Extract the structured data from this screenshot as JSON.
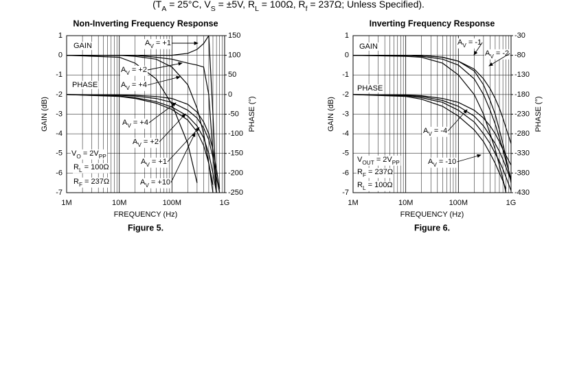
{
  "header": [
    "(T",
    "A",
    " = 25°C, V",
    "S",
    " = ±5V, R",
    "L",
    " = 100Ω, R",
    "f",
    " = 237Ω; Unless Specified)."
  ],
  "chart_data": [
    {
      "type": "line",
      "title": "Non-Inverting Frequency Response",
      "xlabel": "FREQUENCY (Hz)",
      "ylabel": "GAIN (dB)",
      "y2label": "PHASE (°)",
      "caption": "Figure 5.",
      "log_x": true,
      "grid": true,
      "x": [
        1000000,
        10000000,
        20000000,
        50000000,
        100000000,
        200000000,
        300000000,
        400000000,
        500000000,
        600000000,
        700000000,
        800000000,
        1000000000
      ],
      "xlim": [
        1000000,
        1000000000
      ],
      "xticks": [
        {
          "value": 1000000,
          "label": "1M"
        },
        {
          "value": 10000000,
          "label": "10M"
        },
        {
          "value": 100000000,
          "label": "100M"
        },
        {
          "value": 1000000000,
          "label": "1G"
        }
      ],
      "xminorticks": [
        2000000,
        3000000,
        4000000,
        5000000,
        6000000,
        7000000,
        8000000,
        9000000,
        20000000,
        30000000,
        40000000,
        50000000,
        60000000,
        70000000,
        80000000,
        90000000,
        200000000,
        300000000,
        400000000,
        500000000,
        600000000,
        700000000,
        800000000,
        900000000
      ],
      "ylim": [
        -7,
        1
      ],
      "yticks": [
        1,
        0,
        -1,
        -2,
        -3,
        -4,
        -5,
        -6,
        -7
      ],
      "y2lim": [
        -250,
        150
      ],
      "y2ticks": [
        150,
        100,
        50,
        0,
        -50,
        -100,
        -150,
        -200,
        -250
      ],
      "series": [
        {
          "color": "#000000",
          "values": [
            0,
            0,
            0,
            0,
            0,
            0.1,
            0.3,
            0.6,
            1,
            -3,
            -7,
            null,
            null
          ]
        },
        {
          "color": "#000000",
          "values": [
            0,
            0,
            0,
            -0.1,
            -0.2,
            -0.4,
            -0.5,
            -0.6,
            -2,
            -5,
            -7,
            null,
            null
          ]
        },
        {
          "color": "#000000",
          "values": [
            0,
            0,
            -0.05,
            -0.2,
            -0.6,
            -1.5,
            -2.7,
            -4,
            -5.5,
            -7,
            null,
            null,
            null
          ]
        },
        {
          "color": "#000000",
          "values": [
            0,
            -0.1,
            -0.4,
            -1.2,
            -2.5,
            -4.5,
            -6.5,
            null,
            null,
            null,
            null,
            null,
            null
          ]
        },
        {
          "color": "#000000",
          "axis": "y2",
          "values": [
            0,
            -1,
            -2,
            -5,
            -10,
            -25,
            -45,
            -70,
            -100,
            -140,
            -190,
            -240,
            null
          ]
        },
        {
          "color": "#000000",
          "axis": "y2",
          "values": [
            0,
            -2,
            -4,
            -10,
            -20,
            -40,
            -60,
            -85,
            -115,
            -160,
            -210,
            -250,
            null
          ]
        },
        {
          "color": "#000000",
          "axis": "y2",
          "values": [
            0,
            -4,
            -8,
            -18,
            -32,
            -55,
            -80,
            -110,
            -150,
            -200,
            -250,
            null,
            null
          ]
        },
        {
          "color": "#000000",
          "axis": "y2",
          "values": [
            0,
            -5,
            -10,
            -22,
            -38,
            -65,
            -95,
            -130,
            -175,
            -230,
            null,
            null,
            null
          ]
        }
      ],
      "labels": [
        [
          "GAIN"
        ],
        [
          "PHASE"
        ],
        [
          "V",
          "O",
          " = 2V",
          "PP"
        ],
        [
          "R",
          "L",
          " = 100Ω"
        ],
        [
          "R",
          "F",
          " = 237Ω"
        ]
      ],
      "annotations": [
        [
          "A",
          "V",
          " = +1"
        ],
        [
          "A",
          "V",
          " = +2"
        ],
        [
          "A",
          "V",
          " = +4"
        ],
        [
          "A",
          "V",
          " = +4"
        ],
        [
          "A",
          "V",
          " = +2"
        ],
        [
          "A",
          "V",
          " = +1"
        ],
        [
          "A",
          "V",
          " = +10"
        ]
      ]
    },
    {
      "type": "line",
      "title": "Inverting Frequency Response",
      "xlabel": "FREQUENCY (Hz)",
      "ylabel": "GAIN (dB)",
      "y2label": "PHASE (°)",
      "caption": "Figure 6.",
      "log_x": true,
      "grid": true,
      "x": [
        1000000,
        10000000,
        20000000,
        50000000,
        100000000,
        200000000,
        300000000,
        400000000,
        500000000,
        600000000,
        700000000,
        800000000,
        1000000000
      ],
      "xlim": [
        1000000,
        1000000000
      ],
      "xticks": [
        {
          "value": 1000000,
          "label": "1M"
        },
        {
          "value": 10000000,
          "label": "10M"
        },
        {
          "value": 100000000,
          "label": "100M"
        },
        {
          "value": 1000000000,
          "label": "1G"
        }
      ],
      "xminorticks": [
        2000000,
        3000000,
        4000000,
        5000000,
        6000000,
        7000000,
        8000000,
        9000000,
        20000000,
        30000000,
        40000000,
        50000000,
        60000000,
        70000000,
        80000000,
        90000000,
        200000000,
        300000000,
        400000000,
        500000000,
        600000000,
        700000000,
        800000000,
        900000000
      ],
      "ylim": [
        -7,
        1
      ],
      "yticks": [
        1,
        0,
        -1,
        -2,
        -3,
        -4,
        -5,
        -6,
        -7
      ],
      "y2lim": [
        -430,
        -30
      ],
      "y2ticks": [
        -30,
        -80,
        -130,
        -180,
        -230,
        -280,
        -330,
        -380,
        -430
      ],
      "series": [
        {
          "color": "#000000",
          "values": [
            0,
            0,
            0,
            -0.1,
            -0.3,
            -0.8,
            -1.5,
            -2.3,
            -3,
            -3.8,
            -4.5,
            -5.2,
            -6.5
          ]
        },
        {
          "color": "#000000",
          "values": [
            0,
            0,
            0,
            -0.1,
            -0.3,
            -0.7,
            -1.2,
            -1.7,
            -2.2,
            -2.7,
            -3.2,
            -3.7,
            -4.5
          ]
        },
        {
          "color": "#000000",
          "values": [
            0,
            0,
            -0.05,
            -0.2,
            -0.5,
            -1.2,
            -2,
            -2.8,
            -3.5,
            -4.2,
            -4.8,
            -5.4,
            -6.3
          ]
        },
        {
          "color": "#000000",
          "values": [
            0,
            -0.05,
            -0.1,
            -0.4,
            -1,
            -2,
            -3,
            -4,
            -4.8,
            -5.6,
            -6.3,
            -7,
            null
          ]
        },
        {
          "color": "#000000",
          "axis": "y2",
          "values": [
            -180,
            -181,
            -183,
            -190,
            -200,
            -220,
            -240,
            -260,
            -280,
            -300,
            -320,
            -335,
            -360
          ]
        },
        {
          "color": "#000000",
          "axis": "y2",
          "values": [
            -180,
            -182,
            -185,
            -195,
            -210,
            -235,
            -260,
            -285,
            -305,
            -325,
            -345,
            -365,
            -400
          ]
        },
        {
          "color": "#000000",
          "axis": "y2",
          "values": [
            -180,
            -183,
            -188,
            -200,
            -220,
            -250,
            -280,
            -305,
            -330,
            -350,
            -370,
            -390,
            -425
          ]
        },
        {
          "color": "#000000",
          "axis": "y2",
          "values": [
            -180,
            -185,
            -192,
            -210,
            -235,
            -270,
            -300,
            -330,
            -355,
            -380,
            -400,
            -420,
            null
          ]
        }
      ],
      "labels": [
        [
          "GAIN"
        ],
        [
          "PHASE"
        ],
        [
          "V",
          "OUT",
          " = 2V",
          "PP"
        ],
        [
          "R",
          "F",
          " = 237Ω"
        ],
        [
          "R",
          "L",
          " = 100Ω"
        ]
      ],
      "annotations": [
        [
          "A",
          "V",
          " = -1"
        ],
        [
          "A",
          "V",
          " = -2"
        ],
        [
          "A",
          "V",
          " = -4"
        ],
        [
          "A",
          "V",
          " = -10"
        ]
      ]
    }
  ]
}
